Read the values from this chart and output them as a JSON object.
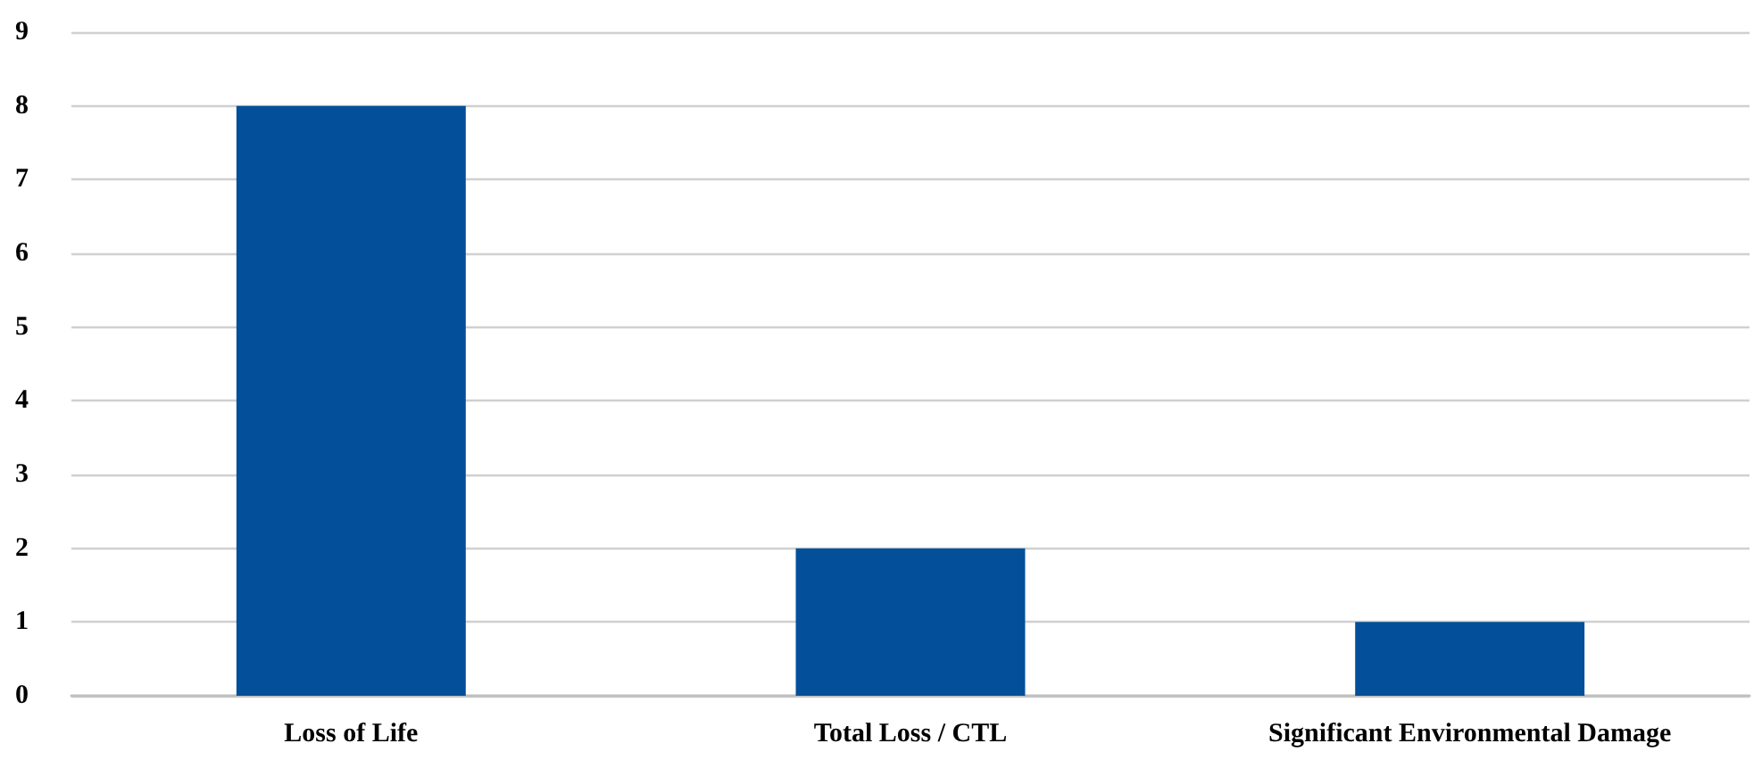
{
  "chart_data": {
    "type": "bar",
    "categories": [
      "Loss of Life",
      "Total Loss / CTL",
      "Significant Environmental Damage"
    ],
    "values": [
      8,
      2,
      1
    ],
    "color": "#034f9a",
    "ylim": [
      0,
      9
    ],
    "yticks": [
      0,
      1,
      2,
      3,
      4,
      5,
      6,
      7,
      8,
      9
    ],
    "grid": "y"
  }
}
